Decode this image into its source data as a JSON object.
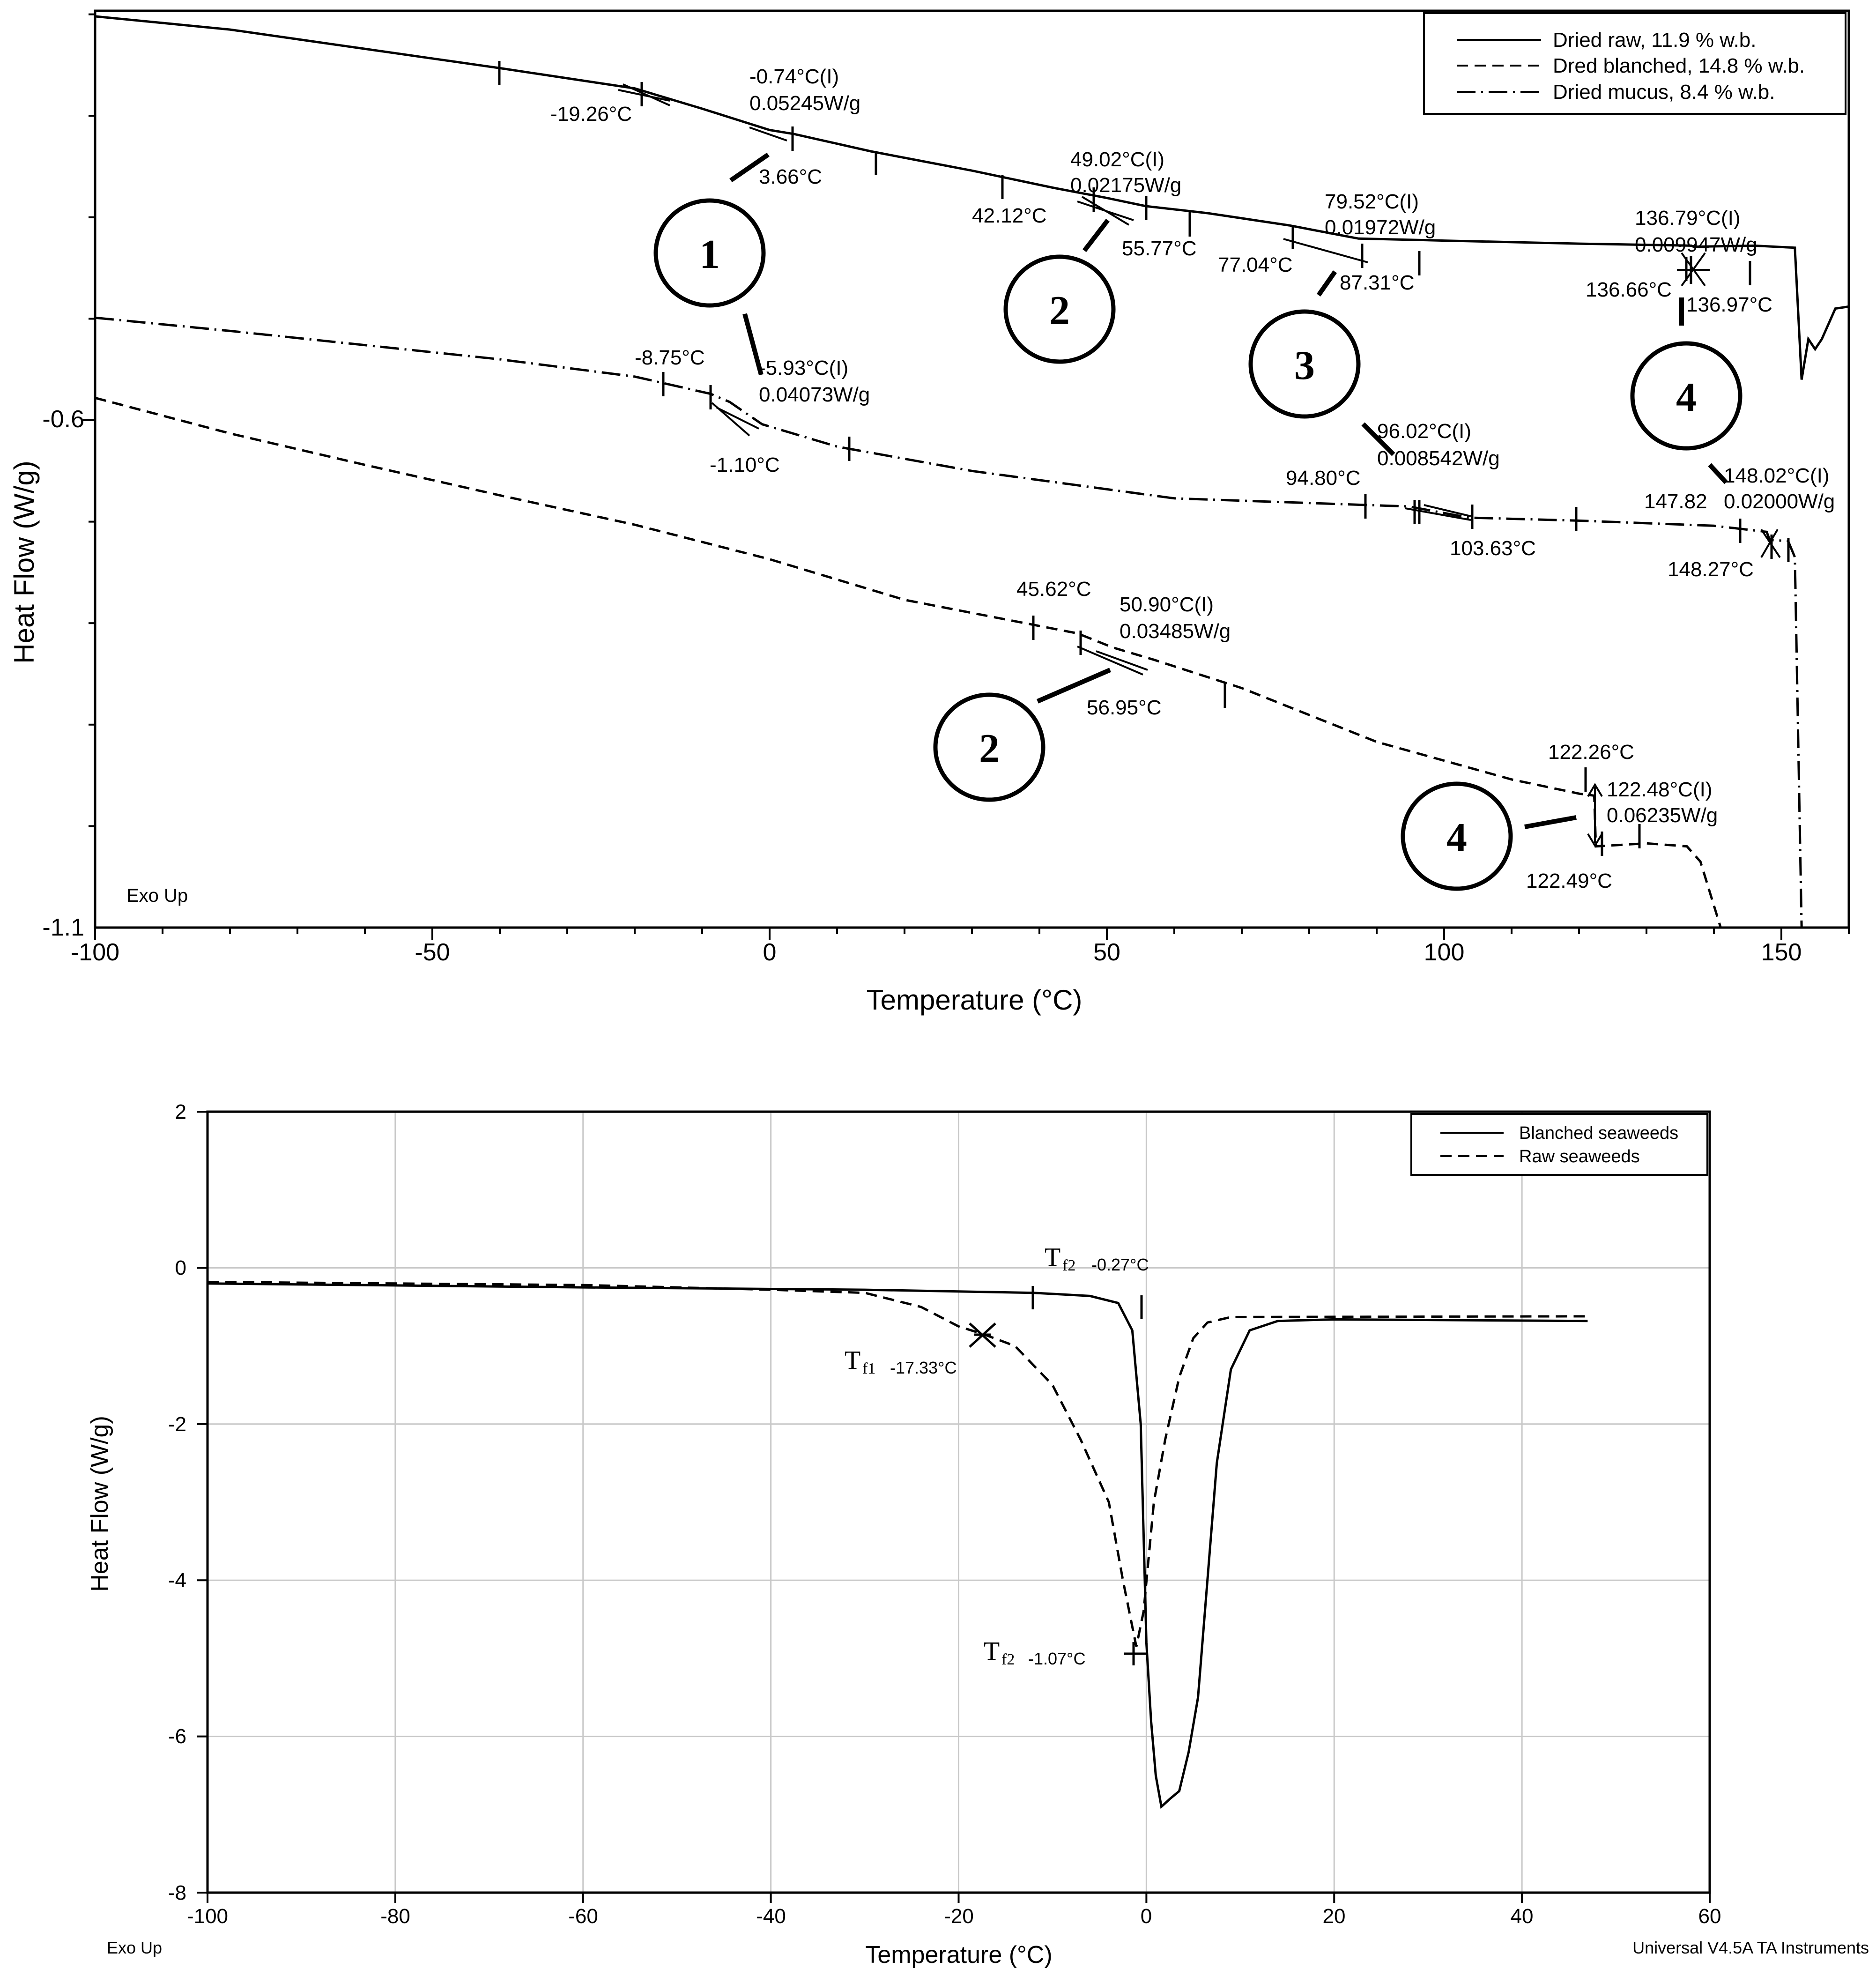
{
  "chart_data": [
    {
      "type": "line",
      "title": "",
      "xlabel": "Temperature (°C)",
      "ylabel": "Heat Flow (W/g)",
      "xlim": [
        -100,
        160
      ],
      "ylim": [
        -1.1,
        -0.2
      ],
      "grid": false,
      "legend_position": "top-right",
      "xticks": [
        "-100",
        "-50",
        "0",
        "50",
        "100",
        "150"
      ],
      "yticks": [
        "-0.6",
        "-1.1"
      ],
      "footer_left": "Exo Up",
      "series": [
        {
          "name": "Dried raw, 11.9 % w.b.",
          "style": "solid",
          "points": [
            [
              -100,
              -0.202
            ],
            [
              -80,
              -0.215
            ],
            [
              -40,
              -0.253
            ],
            [
              -20,
              -0.273
            ],
            [
              -10,
              -0.293
            ],
            [
              0,
              -0.314
            ],
            [
              3.66,
              -0.318
            ],
            [
              15,
              -0.335
            ],
            [
              30,
              -0.354
            ],
            [
              42.12,
              -0.371
            ],
            [
              50,
              -0.381
            ],
            [
              55.77,
              -0.389
            ],
            [
              65,
              -0.396
            ],
            [
              77.04,
              -0.408
            ],
            [
              87.31,
              -0.421
            ],
            [
              100,
              -0.423
            ],
            [
              120,
              -0.426
            ],
            [
              136.66,
              -0.428
            ],
            [
              136.97,
              -0.429
            ],
            [
              146,
              -0.428
            ],
            [
              152,
              -0.43
            ],
            [
              153,
              -0.56
            ],
            [
              154,
              -0.52
            ],
            [
              155,
              -0.53
            ],
            [
              156,
              -0.52
            ],
            [
              158,
              -0.49
            ],
            [
              160,
              -0.488
            ]
          ]
        },
        {
          "name": "Dred blanched, 14.8 % w.b.",
          "style": "dashed",
          "points": [
            [
              -100,
              -0.578
            ],
            [
              -80,
              -0.613
            ],
            [
              -60,
              -0.644
            ],
            [
              -40,
              -0.674
            ],
            [
              -20,
              -0.703
            ],
            [
              0,
              -0.737
            ],
            [
              20,
              -0.777
            ],
            [
              45.62,
              -0.81
            ],
            [
              50.9,
              -0.824
            ],
            [
              56.95,
              -0.836
            ],
            [
              70,
              -0.864
            ],
            [
              90,
              -0.917
            ],
            [
              110,
              -0.954
            ],
            [
              120,
              -0.968
            ],
            [
              122.26,
              -0.97
            ],
            [
              122.49,
              -1.02
            ],
            [
              130,
              -1.017
            ],
            [
              136,
              -1.02
            ],
            [
              138,
              -1.035
            ],
            [
              141,
              -1.1
            ]
          ]
        },
        {
          "name": "Dried mucus, 8.4 % w.b.",
          "style": "dashdot",
          "points": [
            [
              -100,
              -0.499
            ],
            [
              -80,
              -0.512
            ],
            [
              -40,
              -0.54
            ],
            [
              -20,
              -0.557
            ],
            [
              -8.75,
              -0.574
            ],
            [
              -5.93,
              -0.582
            ],
            [
              -1.1,
              -0.604
            ],
            [
              10,
              -0.626
            ],
            [
              30,
              -0.65
            ],
            [
              60,
              -0.677
            ],
            [
              94.8,
              -0.685
            ],
            [
              103.63,
              -0.696
            ],
            [
              120,
              -0.699
            ],
            [
              140,
              -0.704
            ],
            [
              147.82,
              -0.71
            ],
            [
              148.27,
              -0.718
            ],
            [
              151,
              -0.719
            ],
            [
              152,
              -0.735
            ],
            [
              153,
              -1.1
            ]
          ]
        }
      ],
      "point_labels": [
        "-19.26°C",
        "-0.74°C(I)",
        "0.05245W/g",
        "3.66°C",
        "42.12°C",
        "49.02°C(I)",
        "0.02175W/g",
        "55.77°C",
        "77.04°C",
        "79.52°C(I)",
        "0.01972W/g",
        "87.31°C",
        "136.66°C",
        "136.79°C(I)",
        "0.009947W/g",
        "136.97°C",
        "-8.75°C",
        "-5.93°C(I)",
        "0.04073W/g",
        "-1.10°C",
        "94.80°C",
        "96.02°C(I)",
        "0.008542W/g",
        "103.63°C",
        "147.82",
        "148.02°C(I)",
        "0.02000W/g",
        "148.27°C",
        "45.62°C",
        "50.90°C(I)",
        "0.03485W/g",
        "56.95°C",
        "122.26°C",
        "122.48°C(I)",
        "0.06235W/g",
        "122.49°C"
      ],
      "annotations": [
        "1",
        "2",
        "3",
        "4",
        "2",
        "4"
      ]
    },
    {
      "type": "line",
      "title": "",
      "xlabel": "Temperature (°C)",
      "ylabel": "Heat Flow (W/g)",
      "xlim": [
        -100,
        60
      ],
      "ylim": [
        -8,
        2
      ],
      "grid": true,
      "legend_position": "top-right",
      "xticks": [
        "-100",
        "-80",
        "-60",
        "-40",
        "-20",
        "0",
        "20",
        "40",
        "60"
      ],
      "yticks": [
        "2",
        "0",
        "-2",
        "-4",
        "-6",
        "-8"
      ],
      "footer_left": "Exo Up",
      "footer_right": "Universal V4.5A TA Instruments",
      "series": [
        {
          "name": "Blanched seaweeds",
          "style": "solid",
          "points": [
            [
              -100,
              -0.2
            ],
            [
              -60,
              -0.25
            ],
            [
              -30,
              -0.28
            ],
            [
              -12,
              -0.32
            ],
            [
              -6,
              -0.36
            ],
            [
              -3,
              -0.45
            ],
            [
              -1.5,
              -0.8
            ],
            [
              -0.6,
              -2.0
            ],
            [
              0,
              -4.8
            ],
            [
              0.5,
              -5.8
            ],
            [
              1,
              -6.5
            ],
            [
              1.6,
              -6.9
            ],
            [
              2.5,
              -6.8
            ],
            [
              3.5,
              -6.7
            ],
            [
              4.5,
              -6.2
            ],
            [
              5.5,
              -5.5
            ],
            [
              6.5,
              -4.0
            ],
            [
              7.5,
              -2.5
            ],
            [
              9,
              -1.3
            ],
            [
              11,
              -0.8
            ],
            [
              14,
              -0.68
            ],
            [
              20,
              -0.66
            ],
            [
              47,
              -0.68
            ]
          ]
        },
        {
          "name": "Raw seaweeds",
          "style": "dashed",
          "points": [
            [
              -100,
              -0.18
            ],
            [
              -60,
              -0.22
            ],
            [
              -40,
              -0.28
            ],
            [
              -30,
              -0.32
            ],
            [
              -24,
              -0.5
            ],
            [
              -20,
              -0.75
            ],
            [
              -17.33,
              -0.85
            ],
            [
              -14,
              -1.0
            ],
            [
              -10,
              -1.5
            ],
            [
              -7,
              -2.2
            ],
            [
              -4,
              -3.0
            ],
            [
              -2.5,
              -4.0
            ],
            [
              -1.07,
              -4.85
            ],
            [
              -0.3,
              -4.4
            ],
            [
              0.8,
              -3.0
            ],
            [
              2,
              -2.2
            ],
            [
              3.5,
              -1.4
            ],
            [
              5,
              -0.9
            ],
            [
              6.5,
              -0.7
            ],
            [
              9,
              -0.63
            ],
            [
              47,
              -0.62
            ]
          ]
        }
      ],
      "markers": [
        {
          "label_main": "T",
          "label_sub": "f2",
          "value": "-0.27°C"
        },
        {
          "label_main": "T",
          "label_sub": "f1",
          "value": "-17.33°C"
        },
        {
          "label_main": "T",
          "label_sub": "f2",
          "value": "-1.07°C"
        }
      ]
    }
  ]
}
